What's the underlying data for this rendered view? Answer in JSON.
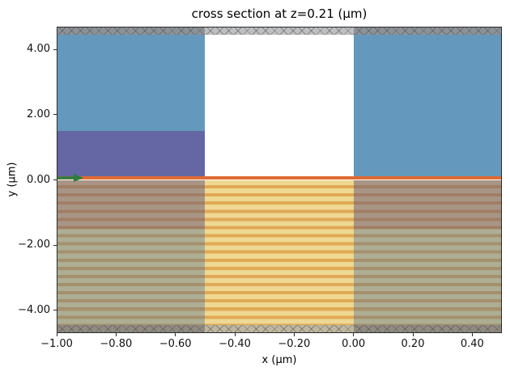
{
  "chart_data": {
    "type": "heatmap",
    "title": "cross section at z=0.21 (μm)",
    "xlabel": "x (μm)",
    "ylabel": "y (μm)",
    "xlim": [
      -1.0,
      0.5
    ],
    "ylim": [
      -4.7,
      4.7
    ],
    "grid": false,
    "legend": "none",
    "xticks": [
      {
        "v": -1.0,
        "label": "−1.00"
      },
      {
        "v": -0.8,
        "label": "−0.80"
      },
      {
        "v": -0.6,
        "label": "−0.60"
      },
      {
        "v": -0.4,
        "label": "−0.40"
      },
      {
        "v": -0.2,
        "label": "−0.20"
      },
      {
        "v": 0.0,
        "label": "0.00"
      },
      {
        "v": 0.2,
        "label": "0.20"
      },
      {
        "v": 0.4,
        "label": "0.40"
      }
    ],
    "yticks": [
      {
        "v": -4.0,
        "label": "−4.00"
      },
      {
        "v": -2.0,
        "label": "−2.00"
      },
      {
        "v": 0.0,
        "label": "0.00"
      },
      {
        "v": 2.0,
        "label": "2.00"
      },
      {
        "v": 4.0,
        "label": "4.00"
      }
    ],
    "stripes": {
      "period_um": 0.25,
      "dark_frac": 0.4,
      "light": "#eed893",
      "dark": "#e0a955"
    },
    "hatch": {
      "color": "rgba(70,70,70,0.45)",
      "spacing": 8
    },
    "regions": [
      {
        "name": "layer-stack-stripes",
        "x0": -1.0,
        "x1": 0.5,
        "y0": -4.45,
        "y1": 0.0,
        "fill": "stripes"
      },
      {
        "name": "medium-overlay-left",
        "x0": -1.0,
        "x1": -0.5,
        "y0": -4.45,
        "y1": 0.0,
        "fill": "rgba(68,104,150,0.38)"
      },
      {
        "name": "medium-overlay-right",
        "x0": 0.0,
        "x1": 0.5,
        "y0": -4.45,
        "y1": 0.0,
        "fill": "rgba(68,104,150,0.38)"
      },
      {
        "name": "deep-layer-overlay-left",
        "x0": -1.0,
        "x1": -0.5,
        "y0": -1.5,
        "y1": 0.0,
        "fill": "rgba(150,62,82,0.22)"
      },
      {
        "name": "deep-layer-overlay-right",
        "x0": 0.0,
        "x1": 0.5,
        "y0": -1.5,
        "y1": 0.0,
        "fill": "rgba(150,62,82,0.22)"
      },
      {
        "name": "interface-layer",
        "x0": -1.0,
        "x1": 0.5,
        "y0": 0.0,
        "y1": 0.12,
        "fill": "#e06a32"
      },
      {
        "name": "upper-block-left",
        "x0": -1.0,
        "x1": -0.5,
        "y0": 0.12,
        "y1": 1.5,
        "fill": "#6467a3"
      },
      {
        "name": "background-medium-left",
        "x0": -1.0,
        "x1": -0.5,
        "y0": 1.5,
        "y1": 4.45,
        "fill": "#6598bd"
      },
      {
        "name": "background-medium-right",
        "x0": 0.0,
        "x1": 0.5,
        "y0": 0.12,
        "y1": 4.45,
        "fill": "#6598bd"
      },
      {
        "name": "boundary-top-left",
        "x0": -1.0,
        "x1": -0.5,
        "y0": 4.45,
        "y1": 4.7,
        "fill": "#8d9298",
        "hatch": true
      },
      {
        "name": "boundary-top-center",
        "x0": -0.5,
        "x1": 0.0,
        "y0": 4.45,
        "y1": 4.7,
        "fill": "#bdbfc1",
        "hatch": true
      },
      {
        "name": "boundary-top-right",
        "x0": 0.0,
        "x1": 0.5,
        "y0": 4.45,
        "y1": 4.7,
        "fill": "#8d9298",
        "hatch": true
      },
      {
        "name": "boundary-bottom-left",
        "x0": -1.0,
        "x1": -0.5,
        "y0": -4.7,
        "y1": -4.45,
        "fill": "#8f8b80",
        "hatch": true
      },
      {
        "name": "boundary-bottom-center",
        "x0": -0.5,
        "x1": 0.0,
        "y0": -4.7,
        "y1": -4.45,
        "fill": "#bfb69f",
        "hatch": true
      },
      {
        "name": "boundary-bottom-right",
        "x0": 0.0,
        "x1": 0.5,
        "y0": -4.7,
        "y1": -4.45,
        "fill": "#8f8b80",
        "hatch": true
      }
    ],
    "arrow": {
      "x": -1.0,
      "y": 0.06,
      "dx_um": 0.09,
      "color": "#2e7d3f"
    }
  }
}
